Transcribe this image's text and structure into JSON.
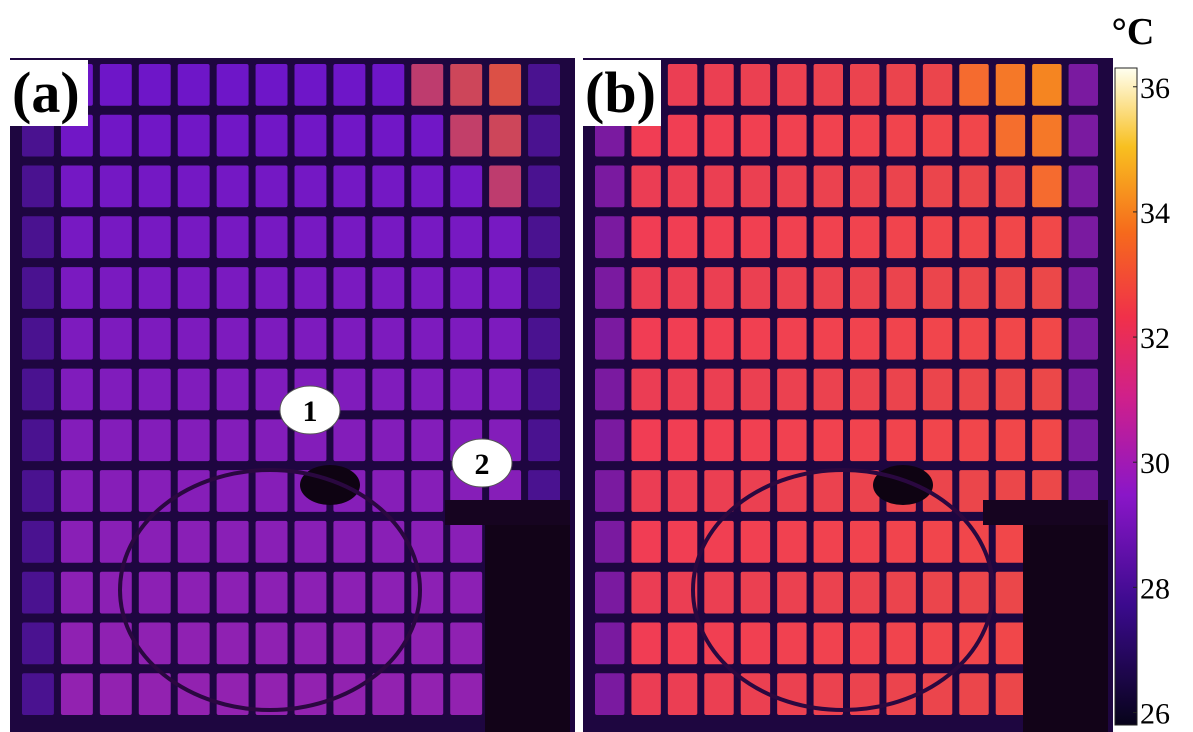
{
  "panels": [
    {
      "label": "(a)",
      "markers": [
        "1",
        "2"
      ]
    },
    {
      "label": "(b)"
    }
  ],
  "colorbar": {
    "unit": "°C",
    "range": [
      25.8,
      36.3
    ],
    "ticks": [
      36,
      34,
      32,
      30,
      28,
      26
    ]
  }
}
